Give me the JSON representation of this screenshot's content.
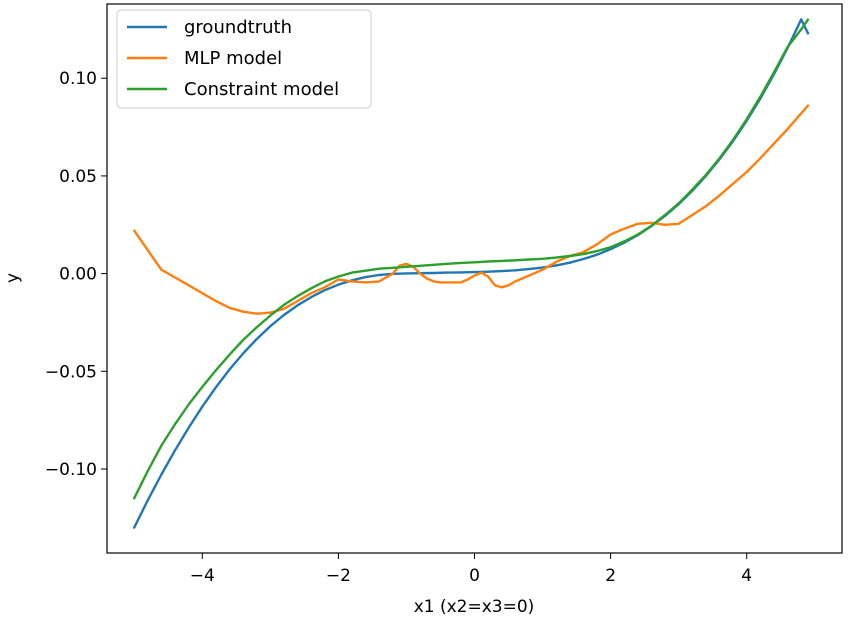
{
  "chart_data": {
    "type": "line",
    "title": "",
    "xlabel": "x1 (x2=x3=0)",
    "ylabel": "y",
    "xlim": [
      -5.4,
      5.4
    ],
    "ylim": [
      -0.143,
      0.138
    ],
    "xticks": [
      -4,
      -2,
      0,
      2,
      4
    ],
    "xtick_labels": [
      "−4",
      "−2",
      "0",
      "2",
      "4"
    ],
    "yticks": [
      -0.1,
      -0.05,
      0.0,
      0.05,
      0.1
    ],
    "ytick_labels": [
      "−0.10",
      "−0.05",
      "0.00",
      "0.05",
      "0.10"
    ],
    "grid": false,
    "legend_position": "top-left",
    "series": [
      {
        "name": "groundtruth",
        "color": "#1f77b4",
        "x": [
          -5.0,
          -4.8,
          -4.6,
          -4.4,
          -4.2,
          -4.0,
          -3.8,
          -3.6,
          -3.4,
          -3.2,
          -3.0,
          -2.8,
          -2.6,
          -2.4,
          -2.2,
          -2.0,
          -1.8,
          -1.6,
          -1.4,
          -1.2,
          -1.0,
          -0.8,
          -0.6,
          -0.4,
          -0.2,
          0.0,
          0.2,
          0.4,
          0.6,
          0.8,
          1.0,
          1.2,
          1.4,
          1.6,
          1.8,
          2.0,
          2.2,
          2.4,
          2.6,
          2.8,
          3.0,
          3.2,
          3.4,
          3.6,
          3.8,
          4.0,
          4.2,
          4.4,
          4.6,
          4.8,
          4.9
        ],
        "y": [
          -0.13,
          -0.116,
          -0.1028,
          -0.0904,
          -0.0788,
          -0.0681,
          -0.0582,
          -0.0491,
          -0.0409,
          -0.0335,
          -0.0269,
          -0.0212,
          -0.0162,
          -0.012,
          -0.0085,
          -0.0056,
          -0.0034,
          -0.0018,
          -0.0007,
          -0.0001,
          0.0001,
          0.0002,
          0.0003,
          0.0005,
          0.0006,
          0.0008,
          0.001,
          0.0013,
          0.0017,
          0.0023,
          0.0031,
          0.0042,
          0.0056,
          0.0075,
          0.0097,
          0.0125,
          0.0158,
          0.0197,
          0.0243,
          0.0296,
          0.0356,
          0.0424,
          0.05,
          0.0585,
          0.0679,
          0.0782,
          0.0896,
          0.102,
          0.1155,
          0.1301,
          0.123
        ]
      },
      {
        "name": "MLP model",
        "color": "#ff7f0e",
        "x": [
          -5.0,
          -4.8,
          -4.6,
          -4.4,
          -4.2,
          -4.0,
          -3.8,
          -3.6,
          -3.4,
          -3.2,
          -3.0,
          -2.8,
          -2.6,
          -2.4,
          -2.2,
          -2.0,
          -1.8,
          -1.6,
          -1.4,
          -1.2,
          -1.1,
          -1.0,
          -0.9,
          -0.8,
          -0.7,
          -0.6,
          -0.5,
          -0.4,
          -0.3,
          -0.2,
          -0.1,
          0.0,
          0.1,
          0.2,
          0.3,
          0.4,
          0.5,
          0.6,
          0.8,
          1.0,
          1.2,
          1.4,
          1.6,
          1.8,
          2.0,
          2.2,
          2.4,
          2.6,
          2.8,
          3.0,
          3.2,
          3.4,
          3.6,
          3.8,
          4.0,
          4.2,
          4.4,
          4.6,
          4.9
        ],
        "y": [
          0.022,
          0.012,
          0.002,
          -0.002,
          -0.006,
          -0.01,
          -0.014,
          -0.0175,
          -0.0195,
          -0.0205,
          -0.02,
          -0.018,
          -0.014,
          -0.01,
          -0.007,
          -0.003,
          -0.004,
          -0.0045,
          -0.004,
          0.0,
          0.004,
          0.005,
          0.0035,
          0.0,
          -0.0025,
          -0.004,
          -0.0045,
          -0.0045,
          -0.0045,
          -0.0045,
          -0.003,
          -0.001,
          0.0005,
          -0.0015,
          -0.006,
          -0.007,
          -0.006,
          -0.004,
          -0.001,
          0.002,
          0.006,
          0.009,
          0.011,
          0.015,
          0.02,
          0.023,
          0.0255,
          0.026,
          0.025,
          0.0255,
          0.03,
          0.0345,
          0.04,
          0.046,
          0.052,
          0.059,
          0.0665,
          0.074,
          0.086
        ]
      },
      {
        "name": "Constraint model",
        "color": "#2ca02c",
        "x": [
          -5.0,
          -4.8,
          -4.6,
          -4.4,
          -4.2,
          -4.0,
          -3.8,
          -3.6,
          -3.4,
          -3.2,
          -3.0,
          -2.8,
          -2.6,
          -2.4,
          -2.2,
          -2.0,
          -1.8,
          -1.6,
          -1.4,
          -1.2,
          -1.0,
          -0.8,
          -0.6,
          -0.4,
          -0.2,
          0.0,
          0.2,
          0.4,
          0.6,
          0.8,
          1.0,
          1.2,
          1.4,
          1.6,
          1.8,
          2.0,
          2.2,
          2.4,
          2.6,
          2.8,
          3.0,
          3.2,
          3.4,
          3.6,
          3.8,
          4.0,
          4.2,
          4.4,
          4.6,
          4.8,
          4.9
        ],
        "y": [
          -0.115,
          -0.101,
          -0.088,
          -0.077,
          -0.067,
          -0.058,
          -0.0495,
          -0.0415,
          -0.034,
          -0.0275,
          -0.0215,
          -0.016,
          -0.0115,
          -0.0075,
          -0.004,
          -0.0015,
          0.0005,
          0.0015,
          0.0025,
          0.003,
          0.0035,
          0.004,
          0.0045,
          0.005,
          0.0055,
          0.0058,
          0.0062,
          0.0065,
          0.0068,
          0.0072,
          0.0076,
          0.0082,
          0.009,
          0.01,
          0.0115,
          0.0135,
          0.0165,
          0.02,
          0.0245,
          0.03,
          0.036,
          0.043,
          0.0505,
          0.059,
          0.0685,
          0.079,
          0.0905,
          0.103,
          0.116,
          0.125,
          0.13
        ]
      }
    ]
  }
}
